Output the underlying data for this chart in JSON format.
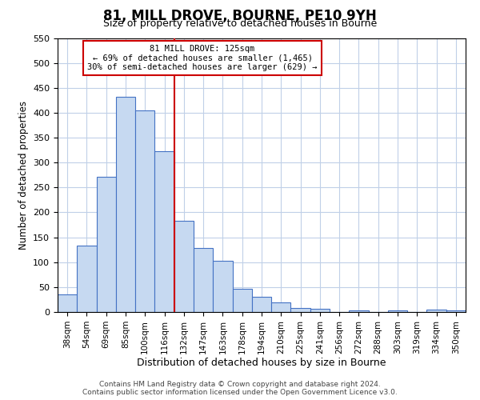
{
  "title": "81, MILL DROVE, BOURNE, PE10 9YH",
  "subtitle": "Size of property relative to detached houses in Bourne",
  "xlabel": "Distribution of detached houses by size in Bourne",
  "ylabel": "Number of detached properties",
  "bar_labels": [
    "38sqm",
    "54sqm",
    "69sqm",
    "85sqm",
    "100sqm",
    "116sqm",
    "132sqm",
    "147sqm",
    "163sqm",
    "178sqm",
    "194sqm",
    "210sqm",
    "225sqm",
    "241sqm",
    "256sqm",
    "272sqm",
    "288sqm",
    "303sqm",
    "319sqm",
    "334sqm",
    "350sqm"
  ],
  "bar_values": [
    35,
    133,
    272,
    432,
    405,
    323,
    183,
    128,
    103,
    46,
    30,
    20,
    8,
    7,
    0,
    4,
    0,
    3,
    0,
    5,
    3
  ],
  "bar_color": "#c6d9f1",
  "bar_edge_color": "#4472c4",
  "property_line_x": 5.5,
  "annotation_line1": "81 MILL DROVE: 125sqm",
  "annotation_line2": "← 69% of detached houses are smaller (1,465)",
  "annotation_line3": "30% of semi-detached houses are larger (629) →",
  "annotation_box_color": "#cc0000",
  "ylim": [
    0,
    550
  ],
  "yticks": [
    0,
    50,
    100,
    150,
    200,
    250,
    300,
    350,
    400,
    450,
    500,
    550
  ],
  "footer1": "Contains HM Land Registry data © Crown copyright and database right 2024.",
  "footer2": "Contains public sector information licensed under the Open Government Licence v3.0.",
  "background_color": "#ffffff",
  "grid_color": "#c0d0e8"
}
